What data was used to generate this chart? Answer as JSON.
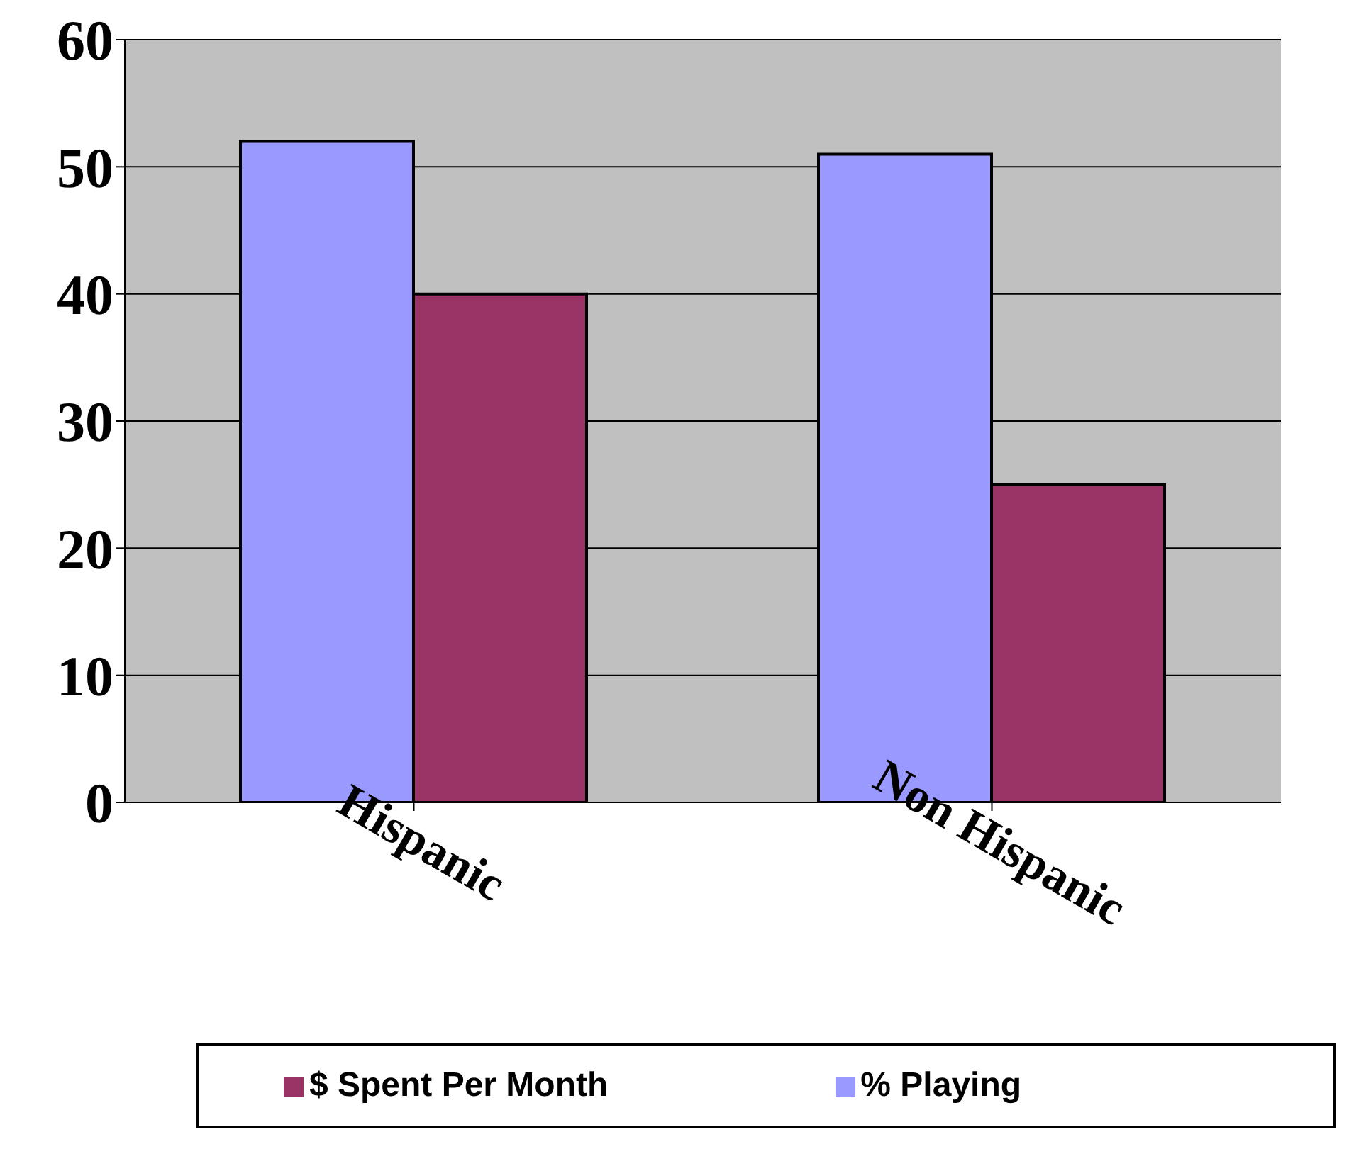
{
  "chart_data": {
    "type": "bar",
    "categories": [
      "Hispanic",
      "Non Hispanic"
    ],
    "series": [
      {
        "name": "% Playing",
        "color": "#9999ff",
        "values": [
          52,
          51
        ]
      },
      {
        "name": "$ Spent Per Month",
        "color": "#993366",
        "values": [
          40,
          25
        ]
      }
    ],
    "ylim": [
      0,
      60
    ],
    "yticks": [
      0,
      10,
      20,
      30,
      40,
      50,
      60
    ],
    "grid": "y",
    "legend": "bottom"
  }
}
